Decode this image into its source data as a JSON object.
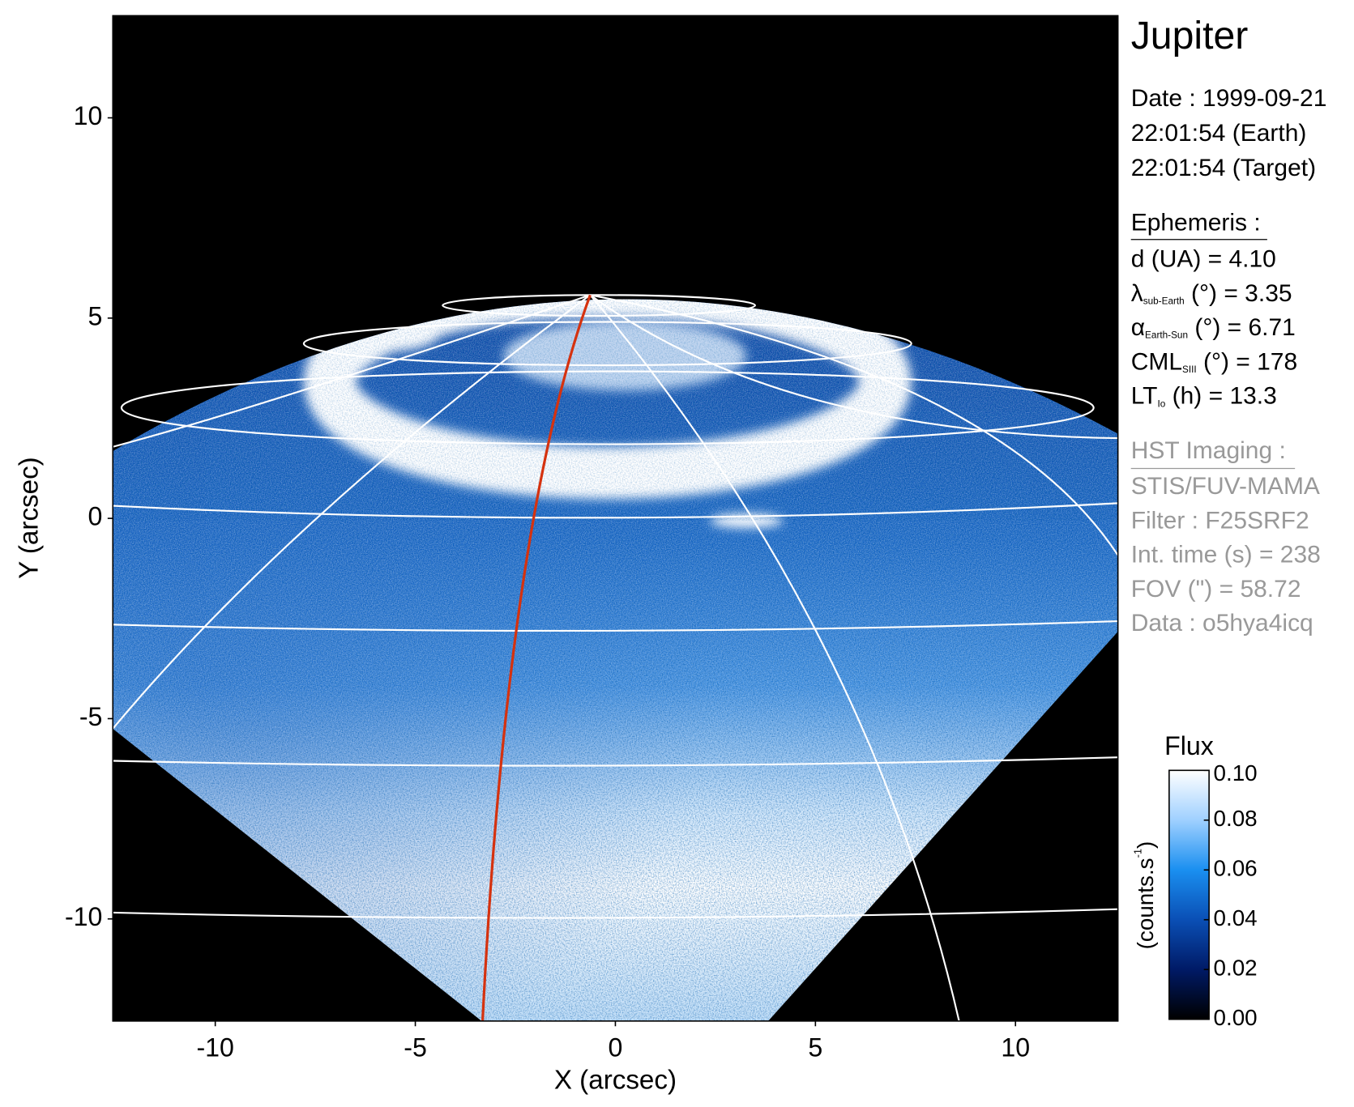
{
  "chart_data": {
    "type": "image",
    "title": "Jupiter",
    "xlabel": "X (arcsec)",
    "ylabel": "Y (arcsec)",
    "xlim": [
      -12.56,
      12.56
    ],
    "ylim": [
      -12.55,
      12.55
    ],
    "xticks": [
      -10,
      -5,
      0,
      5,
      10
    ],
    "yticks": [
      -10,
      -5,
      0,
      5,
      10
    ]
  },
  "info": {
    "date": [
      "Date : 1999-09-21",
      "22:01:54 (Earth)",
      "22:01:54 (Target)"
    ],
    "ephemeris_title": "Ephemeris :",
    "ephemeris": [
      {
        "symbol": "d (UA)    = 4.10"
      },
      {
        "symbol": "λ",
        "subscript": "sub-Earth",
        "text": " (°) = 3.35"
      },
      {
        "symbol": "α",
        "subscript": "Earth-Sun",
        "text": " (°) = 6.71"
      },
      {
        "symbol": "CML",
        "subscript": "SIII",
        "text": " (°) = 178"
      },
      {
        "symbol": "LT",
        "subscript": "Io",
        "text": " (h) = 13.3"
      }
    ],
    "imaging_title": "HST Imaging :",
    "imaging": [
      "STIS/FUV-MAMA",
      "Filter : F25SRF2",
      "Int. time (s) = 238",
      "FOV (\") = 58.72",
      "Data : o5hya4icq"
    ]
  },
  "colorbar": {
    "title": "Flux",
    "units": {
      "text": "(counts.s",
      "sup": "-1",
      "close": ")"
    },
    "lim": [
      0,
      0.1
    ],
    "ticks": [
      {
        "value": 0,
        "label": "0.00"
      },
      {
        "value": 0.02,
        "label": "0.02"
      },
      {
        "value": 0.04,
        "label": "0.04"
      },
      {
        "value": 0.06,
        "label": "0.06"
      },
      {
        "value": 0.08,
        "label": "0.08"
      },
      {
        "value": 0.1,
        "label": "0.10"
      }
    ],
    "colors": [
      "#000000",
      "#001a66",
      "#0a4fb5",
      "#1a8ff0",
      "#9fd0ff",
      "#ffffff"
    ]
  }
}
